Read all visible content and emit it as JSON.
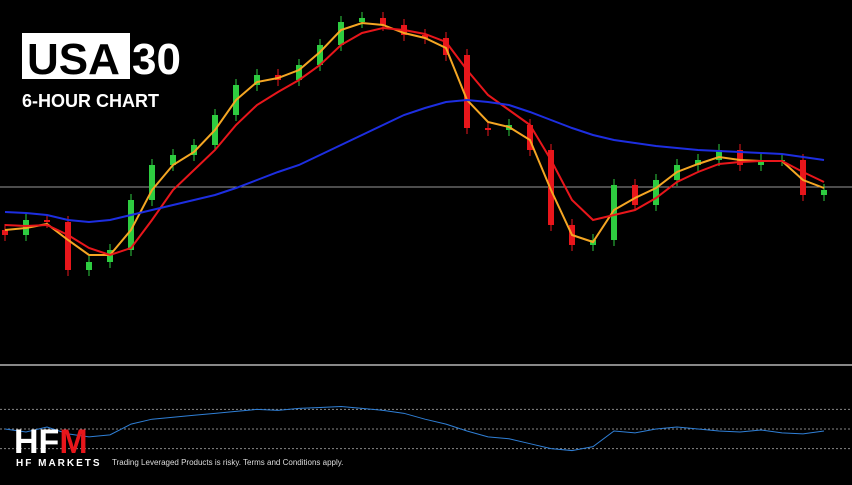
{
  "chart_data": {
    "type": "candlestick",
    "title_parts": [
      "USA",
      "30"
    ],
    "subtitle": "6-HOUR CHART",
    "ylim": [
      0,
      360
    ],
    "price_line": 173,
    "up_color": "#2ecc40",
    "down_color": "#e8161b",
    "open": [
      130,
      125,
      140,
      138,
      90,
      98,
      110,
      160,
      195,
      205,
      215,
      245,
      275,
      285,
      280,
      295,
      315,
      338,
      342,
      335,
      325,
      322,
      305,
      232,
      230,
      235,
      210,
      135,
      115,
      120,
      175,
      155,
      180,
      195,
      200,
      210,
      195,
      200,
      200,
      165
    ],
    "high": [
      136,
      146,
      146,
      144,
      104,
      116,
      166,
      201,
      211,
      221,
      251,
      281,
      291,
      291,
      301,
      321,
      344,
      348,
      348,
      341,
      331,
      328,
      311,
      238,
      241,
      241,
      216,
      141,
      126,
      181,
      181,
      186,
      201,
      206,
      216,
      216,
      206,
      206,
      206,
      176
    ],
    "low": [
      119,
      119,
      132,
      84,
      84,
      92,
      104,
      154,
      189,
      199,
      209,
      239,
      269,
      274,
      274,
      289,
      309,
      332,
      329,
      319,
      316,
      299,
      226,
      224,
      224,
      204,
      129,
      109,
      109,
      114,
      149,
      149,
      174,
      189,
      194,
      189,
      189,
      194,
      159,
      159
    ],
    "close": [
      125,
      140,
      138,
      90,
      98,
      110,
      160,
      195,
      205,
      215,
      245,
      275,
      285,
      280,
      295,
      315,
      338,
      342,
      335,
      325,
      322,
      305,
      232,
      230,
      235,
      210,
      135,
      115,
      120,
      175,
      155,
      180,
      195,
      200,
      210,
      195,
      200,
      200,
      165,
      170
    ],
    "series": [
      {
        "color": "#f5a623",
        "values": [
          130,
          132,
          136,
          120,
          105,
          105,
          130,
          170,
          195,
          208,
          230,
          260,
          278,
          282,
          290,
          308,
          330,
          337,
          335,
          327,
          322,
          312,
          260,
          238,
          233,
          220,
          170,
          125,
          118,
          150,
          162,
          172,
          188,
          196,
          203,
          200,
          199,
          199,
          180,
          172
        ]
      },
      {
        "color": "#e8161b",
        "values": [
          135,
          134,
          135,
          125,
          112,
          105,
          112,
          140,
          170,
          190,
          210,
          235,
          255,
          268,
          280,
          295,
          315,
          327,
          332,
          330,
          326,
          318,
          290,
          265,
          250,
          235,
          200,
          160,
          140,
          145,
          150,
          162,
          178,
          188,
          196,
          198,
          199,
          199,
          188,
          178
        ]
      },
      {
        "color": "#1d2ee0",
        "values": [
          148,
          147,
          145,
          140,
          138,
          140,
          145,
          150,
          155,
          160,
          165,
          172,
          180,
          188,
          195,
          205,
          215,
          225,
          235,
          245,
          252,
          258,
          260,
          258,
          255,
          248,
          240,
          232,
          225,
          220,
          217,
          214,
          212,
          210,
          209,
          208,
          207,
          206,
          203,
          200
        ]
      }
    ],
    "indicator": {
      "color": "#2f7fd6",
      "ylim": [
        0,
        100
      ],
      "yticks": [
        30,
        50,
        70
      ],
      "values": [
        50,
        47,
        52,
        45,
        42,
        44,
        55,
        60,
        62,
        64,
        66,
        68,
        70,
        69,
        71,
        72,
        73,
        71,
        69,
        66,
        60,
        55,
        48,
        42,
        40,
        35,
        30,
        28,
        32,
        48,
        46,
        50,
        52,
        50,
        48,
        47,
        49,
        46,
        45,
        48
      ]
    }
  },
  "logo": [
    "HF",
    "M"
  ],
  "brand": "HF MARKETS",
  "disclaimer": "Trading Leveraged Products is risky. Terms and Conditions apply."
}
